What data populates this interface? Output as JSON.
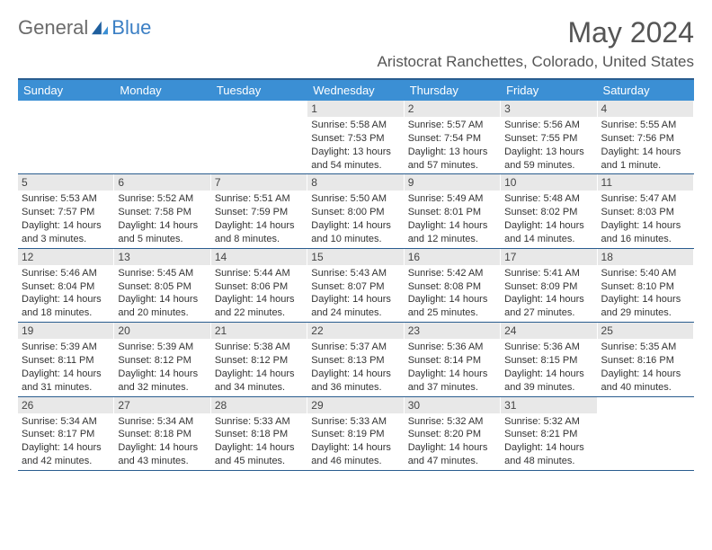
{
  "brand": {
    "part1": "General",
    "part2": "Blue"
  },
  "title": "May 2024",
  "location": "Aristocrat Ranchettes, Colorado, United States",
  "colors": {
    "header_bg": "#3b8fd4",
    "header_text": "#ffffff",
    "border": "#2a5d8f",
    "daynum_bg": "#e8e8e8",
    "text": "#333333",
    "title_color": "#555555",
    "logo_gray": "#6b6b6b",
    "logo_blue": "#3b7fc4"
  },
  "day_headers": [
    "Sunday",
    "Monday",
    "Tuesday",
    "Wednesday",
    "Thursday",
    "Friday",
    "Saturday"
  ],
  "weeks": [
    [
      {
        "blank": true
      },
      {
        "blank": true
      },
      {
        "blank": true
      },
      {
        "num": "1",
        "sunrise": "5:58 AM",
        "sunset": "7:53 PM",
        "daylight": "13 hours and 54 minutes."
      },
      {
        "num": "2",
        "sunrise": "5:57 AM",
        "sunset": "7:54 PM",
        "daylight": "13 hours and 57 minutes."
      },
      {
        "num": "3",
        "sunrise": "5:56 AM",
        "sunset": "7:55 PM",
        "daylight": "13 hours and 59 minutes."
      },
      {
        "num": "4",
        "sunrise": "5:55 AM",
        "sunset": "7:56 PM",
        "daylight": "14 hours and 1 minute."
      }
    ],
    [
      {
        "num": "5",
        "sunrise": "5:53 AM",
        "sunset": "7:57 PM",
        "daylight": "14 hours and 3 minutes."
      },
      {
        "num": "6",
        "sunrise": "5:52 AM",
        "sunset": "7:58 PM",
        "daylight": "14 hours and 5 minutes."
      },
      {
        "num": "7",
        "sunrise": "5:51 AM",
        "sunset": "7:59 PM",
        "daylight": "14 hours and 8 minutes."
      },
      {
        "num": "8",
        "sunrise": "5:50 AM",
        "sunset": "8:00 PM",
        "daylight": "14 hours and 10 minutes."
      },
      {
        "num": "9",
        "sunrise": "5:49 AM",
        "sunset": "8:01 PM",
        "daylight": "14 hours and 12 minutes."
      },
      {
        "num": "10",
        "sunrise": "5:48 AM",
        "sunset": "8:02 PM",
        "daylight": "14 hours and 14 minutes."
      },
      {
        "num": "11",
        "sunrise": "5:47 AM",
        "sunset": "8:03 PM",
        "daylight": "14 hours and 16 minutes."
      }
    ],
    [
      {
        "num": "12",
        "sunrise": "5:46 AM",
        "sunset": "8:04 PM",
        "daylight": "14 hours and 18 minutes."
      },
      {
        "num": "13",
        "sunrise": "5:45 AM",
        "sunset": "8:05 PM",
        "daylight": "14 hours and 20 minutes."
      },
      {
        "num": "14",
        "sunrise": "5:44 AM",
        "sunset": "8:06 PM",
        "daylight": "14 hours and 22 minutes."
      },
      {
        "num": "15",
        "sunrise": "5:43 AM",
        "sunset": "8:07 PM",
        "daylight": "14 hours and 24 minutes."
      },
      {
        "num": "16",
        "sunrise": "5:42 AM",
        "sunset": "8:08 PM",
        "daylight": "14 hours and 25 minutes."
      },
      {
        "num": "17",
        "sunrise": "5:41 AM",
        "sunset": "8:09 PM",
        "daylight": "14 hours and 27 minutes."
      },
      {
        "num": "18",
        "sunrise": "5:40 AM",
        "sunset": "8:10 PM",
        "daylight": "14 hours and 29 minutes."
      }
    ],
    [
      {
        "num": "19",
        "sunrise": "5:39 AM",
        "sunset": "8:11 PM",
        "daylight": "14 hours and 31 minutes."
      },
      {
        "num": "20",
        "sunrise": "5:39 AM",
        "sunset": "8:12 PM",
        "daylight": "14 hours and 32 minutes."
      },
      {
        "num": "21",
        "sunrise": "5:38 AM",
        "sunset": "8:12 PM",
        "daylight": "14 hours and 34 minutes."
      },
      {
        "num": "22",
        "sunrise": "5:37 AM",
        "sunset": "8:13 PM",
        "daylight": "14 hours and 36 minutes."
      },
      {
        "num": "23",
        "sunrise": "5:36 AM",
        "sunset": "8:14 PM",
        "daylight": "14 hours and 37 minutes."
      },
      {
        "num": "24",
        "sunrise": "5:36 AM",
        "sunset": "8:15 PM",
        "daylight": "14 hours and 39 minutes."
      },
      {
        "num": "25",
        "sunrise": "5:35 AM",
        "sunset": "8:16 PM",
        "daylight": "14 hours and 40 minutes."
      }
    ],
    [
      {
        "num": "26",
        "sunrise": "5:34 AM",
        "sunset": "8:17 PM",
        "daylight": "14 hours and 42 minutes."
      },
      {
        "num": "27",
        "sunrise": "5:34 AM",
        "sunset": "8:18 PM",
        "daylight": "14 hours and 43 minutes."
      },
      {
        "num": "28",
        "sunrise": "5:33 AM",
        "sunset": "8:18 PM",
        "daylight": "14 hours and 45 minutes."
      },
      {
        "num": "29",
        "sunrise": "5:33 AM",
        "sunset": "8:19 PM",
        "daylight": "14 hours and 46 minutes."
      },
      {
        "num": "30",
        "sunrise": "5:32 AM",
        "sunset": "8:20 PM",
        "daylight": "14 hours and 47 minutes."
      },
      {
        "num": "31",
        "sunrise": "5:32 AM",
        "sunset": "8:21 PM",
        "daylight": "14 hours and 48 minutes."
      },
      {
        "blank": true
      }
    ]
  ],
  "labels": {
    "sunrise": "Sunrise:",
    "sunset": "Sunset:",
    "daylight": "Daylight:"
  }
}
